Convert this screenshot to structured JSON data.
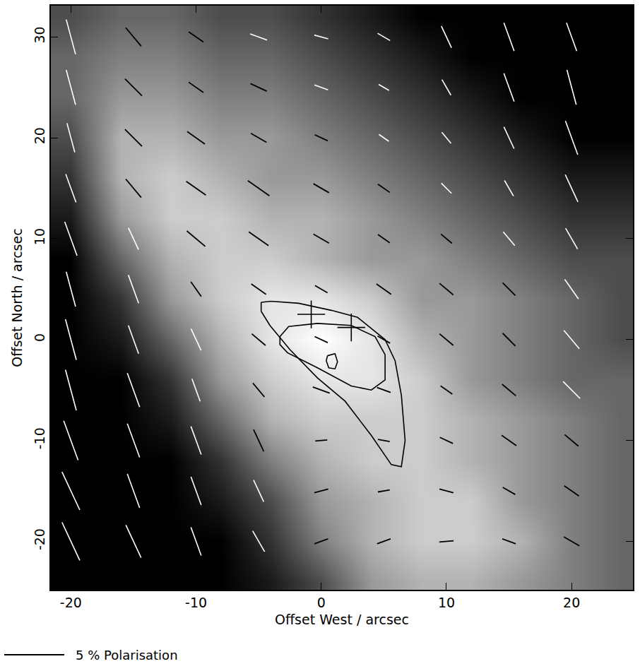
{
  "chart_data": {
    "type": "heatmap",
    "xlabel": "Offset West / arcsec",
    "ylabel": "Offset North / arcsec",
    "xlim": [
      -21.6,
      24.9
    ],
    "ylim": [
      -24.8,
      33.1
    ],
    "xticks": [
      -20,
      -10,
      0,
      10,
      20
    ],
    "yticks": [
      -20,
      -10,
      0,
      10,
      20,
      30
    ],
    "zlim": [
      0,
      10
    ],
    "x": [
      -20,
      -16,
      -12,
      -8,
      -4,
      0,
      4,
      8,
      12,
      16,
      20,
      24
    ],
    "y": [
      -24,
      -20,
      -16,
      -12,
      -8,
      -4,
      0,
      4,
      8,
      12,
      16,
      20,
      24,
      28,
      32
    ],
    "z": [
      [
        0,
        0,
        0,
        0,
        1,
        3,
        6,
        7,
        7,
        6,
        5,
        4
      ],
      [
        0,
        0,
        0,
        0,
        2,
        5,
        7,
        8,
        8,
        7,
        5,
        4
      ],
      [
        0,
        0,
        0,
        1,
        3,
        6,
        7,
        8,
        8,
        6,
        5,
        4
      ],
      [
        0,
        0,
        0,
        2,
        5,
        7,
        8,
        8,
        7,
        6,
        5,
        4
      ],
      [
        0,
        0,
        1,
        4,
        7,
        8,
        8,
        8,
        7,
        6,
        5,
        4
      ],
      [
        0,
        0,
        2,
        6,
        8,
        9,
        9,
        8,
        6,
        5,
        4,
        4
      ],
      [
        0,
        1,
        4,
        7,
        9,
        10,
        9,
        7,
        6,
        5,
        4,
        3
      ],
      [
        0,
        2,
        6,
        8,
        9,
        9,
        8,
        6,
        6,
        5,
        4,
        3
      ],
      [
        0,
        4,
        7,
        8,
        8,
        7,
        6,
        6,
        5,
        4,
        3,
        3
      ],
      [
        1,
        6,
        8,
        8,
        7,
        7,
        6,
        5,
        4,
        3,
        2,
        2
      ],
      [
        2,
        7,
        8,
        7,
        6,
        6,
        5,
        4,
        3,
        2,
        1,
        1
      ],
      [
        3,
        7,
        7,
        6,
        6,
        5,
        4,
        3,
        2,
        1,
        0,
        0
      ],
      [
        4,
        6,
        6,
        5,
        5,
        4,
        3,
        2,
        1,
        0,
        0,
        0
      ],
      [
        4,
        5,
        5,
        4,
        4,
        3,
        2,
        1,
        0,
        0,
        0,
        0
      ],
      [
        3,
        4,
        4,
        3,
        3,
        2,
        1,
        0,
        0,
        0,
        0,
        0
      ]
    ],
    "vectors": {
      "x": [
        -20,
        -15,
        -10,
        -5,
        0,
        5,
        10,
        15,
        20
      ],
      "y": [
        30,
        25,
        20,
        15,
        10,
        5,
        0,
        -5,
        -10,
        -15,
        -20
      ],
      "p": [
        [
          3.0,
          2.0,
          1.5,
          1.5,
          1.2,
          1.2,
          2.0,
          2.5,
          2.5
        ],
        [
          3.0,
          2.0,
          1.5,
          1.5,
          1.2,
          1.0,
          1.5,
          2.5,
          3.0
        ],
        [
          2.5,
          2.0,
          1.8,
          1.5,
          1.2,
          1.0,
          1.2,
          2.0,
          3.0
        ],
        [
          2.5,
          2.0,
          2.0,
          2.2,
          1.5,
          1.2,
          1.2,
          1.5,
          2.5
        ],
        [
          3.0,
          2.0,
          2.0,
          2.0,
          1.5,
          1.2,
          1.2,
          1.5,
          2.0
        ],
        [
          3.0,
          2.5,
          1.5,
          1.5,
          1.2,
          1.5,
          1.5,
          1.5,
          2.0
        ],
        [
          3.5,
          2.5,
          2.0,
          1.5,
          1.2,
          1.2,
          1.5,
          1.5,
          2.0
        ],
        [
          3.5,
          3.0,
          2.0,
          1.5,
          1.5,
          1.2,
          1.2,
          1.5,
          2.0
        ],
        [
          3.5,
          3.0,
          2.5,
          2.0,
          1.0,
          1.0,
          1.2,
          1.5,
          1.5
        ],
        [
          3.5,
          3.0,
          2.5,
          2.0,
          1.2,
          1.0,
          1.2,
          1.2,
          1.5
        ],
        [
          3.5,
          3.0,
          2.5,
          2.0,
          1.2,
          1.2,
          1.2,
          1.2,
          1.5
        ]
      ],
      "angle": [
        [
          15,
          40,
          55,
          70,
          75,
          60,
          25,
          20,
          20
        ],
        [
          15,
          45,
          55,
          65,
          70,
          60,
          30,
          20,
          15
        ],
        [
          15,
          45,
          55,
          60,
          65,
          55,
          40,
          25,
          20
        ],
        [
          20,
          40,
          55,
          55,
          60,
          55,
          45,
          30,
          25
        ],
        [
          20,
          25,
          50,
          55,
          60,
          55,
          50,
          40,
          30
        ],
        [
          15,
          20,
          35,
          55,
          60,
          55,
          50,
          45,
          35
        ],
        [
          15,
          20,
          25,
          50,
          65,
          60,
          50,
          45,
          40
        ],
        [
          15,
          20,
          20,
          40,
          70,
          70,
          55,
          50,
          45
        ],
        [
          20,
          20,
          20,
          25,
          95,
          80,
          65,
          55,
          50
        ],
        [
          25,
          20,
          20,
          25,
          105,
          100,
          75,
          60,
          55
        ],
        [
          25,
          25,
          20,
          30,
          110,
          110,
          95,
          70,
          60
        ]
      ]
    },
    "contours": [
      {
        "x": [
          -4.8,
          -4.0,
          -1.8,
          0.8,
          2.9,
          5.1,
          5.9,
          6.4,
          6.7,
          6.4,
          5.6,
          4.0,
          1.9,
          -0.3,
          -2.5,
          -4.1,
          -4.8,
          -4.8
        ],
        "y": [
          3.7,
          3.8,
          3.6,
          2.9,
          2.2,
          0.0,
          -2.1,
          -5.5,
          -10.0,
          -12.6,
          -12.4,
          -9.5,
          -6.1,
          -3.8,
          -1.0,
          1.4,
          2.8,
          3.7
        ]
      },
      {
        "x": [
          -3.3,
          -2.6,
          -0.3,
          2.4,
          4.3,
          5.1,
          5.1,
          4.0,
          2.4,
          -0.3,
          -2.7,
          -3.3,
          -3.3
        ],
        "y": [
          0.3,
          1.3,
          1.6,
          1.4,
          0.3,
          -1.5,
          -4.0,
          -5.0,
          -4.6,
          -2.8,
          -1.3,
          -0.5,
          0.3
        ]
      },
      {
        "x": [
          0.5,
          1.1,
          1.3,
          1.1,
          0.6,
          0.4,
          0.5
        ],
        "y": [
          -1.6,
          -1.4,
          -2.2,
          -2.9,
          -2.8,
          -2.1,
          -1.6
        ]
      }
    ],
    "markers": {
      "x": [
        -0.8,
        2.4
      ],
      "y": [
        2.5,
        1.2
      ]
    },
    "scale_bar": {
      "value": 5,
      "label": "5 % Polarisation"
    }
  }
}
